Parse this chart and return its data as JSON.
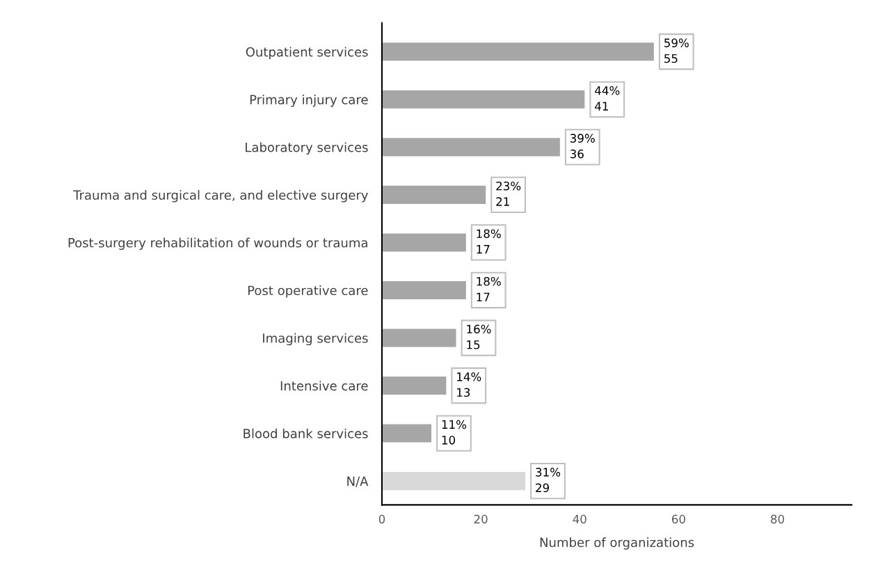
{
  "chart_data": {
    "type": "bar",
    "orientation": "horizontal",
    "xlabel": "Number of organizations",
    "categories": [
      "Outpatient services",
      "Primary injury care",
      "Laboratory services",
      "Trauma and surgical care, and elective surgery",
      "Post-surgery rehabilitation of wounds or trauma",
      "Post operative care",
      "Imaging services",
      "Intensive care",
      "Blood bank services",
      "N/A"
    ],
    "values": [
      55,
      41,
      36,
      21,
      17,
      17,
      15,
      13,
      10,
      29
    ],
    "colors": [
      "#a6a6a6",
      "#a6a6a6",
      "#a6a6a6",
      "#a6a6a6",
      "#a6a6a6",
      "#a6a6a6",
      "#a6a6a6",
      "#a6a6a6",
      "#a6a6a6",
      "#d9d9d9"
    ],
    "value_labels": [
      "59%\n55",
      "44%\n41",
      "39%\n36",
      "23%\n21",
      "18%\n17",
      "18%\n17",
      "16%\n15",
      "14%\n13",
      "11%\n10",
      "31%\n29"
    ],
    "xlim": [
      0,
      95
    ],
    "xticks": [
      0,
      20,
      40,
      60,
      80
    ],
    "grid": false,
    "legend": false
  }
}
